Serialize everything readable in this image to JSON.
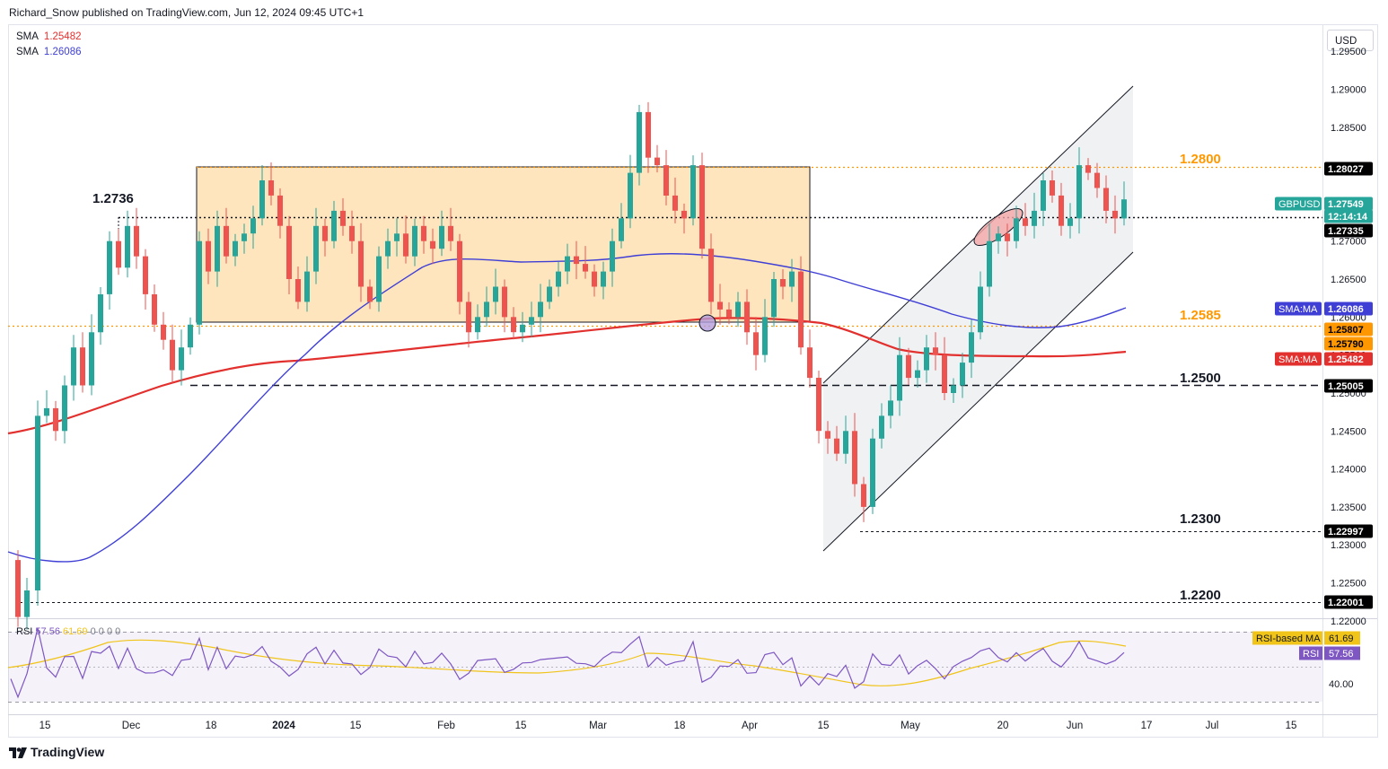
{
  "header": {
    "publisher": "Richard_Snow published on TradingView.com, Jun 12, 2024 09:45 UTC+1"
  },
  "legend": {
    "sma1_label": "SMA",
    "sma1_value": "1.25482",
    "sma2_label": "SMA",
    "sma2_value": "1.26086"
  },
  "currency_button": "USD",
  "footer": {
    "brand": "TradingView"
  },
  "colors": {
    "up": "#26a69a",
    "down": "#ef5350",
    "sma_red": "#e2302e",
    "sma_blue": "#3f3fd6",
    "zone_fill": "#ffe0b2",
    "orange": "#ff9800",
    "rsi": "#7e57c2",
    "rsi_ma": "#f0c419",
    "channel_fill": "#eef0f2"
  },
  "annotations": {
    "level_12736": "1.2736",
    "level_12800": "1.2800",
    "level_12585": "1.2585",
    "level_12500": "1.2500",
    "level_12300": "1.2300",
    "level_12200": "1.2200"
  },
  "rsi_legend": {
    "label": "RSI",
    "value": "57.56",
    "ma_value": "61.69",
    "zeros": "0 0 0 0"
  },
  "chart_data": {
    "type": "candlestick",
    "symbol": "GBPUSD",
    "price_axis": {
      "ticks": [
        "1.29500",
        "1.29000",
        "1.28500",
        "1.28000",
        "1.27500",
        "1.27000",
        "1.26500",
        "1.26000",
        "1.25500",
        "1.25000",
        "1.24500",
        "1.24000",
        "1.23500",
        "1.23000",
        "1.22500",
        "1.22000"
      ],
      "range": [
        1.2175,
        1.2975
      ]
    },
    "time_axis": {
      "ticks": [
        "15",
        "Dec",
        "18",
        "2024",
        "15",
        "Feb",
        "15",
        "Mar",
        "18",
        "Apr",
        "15",
        "May",
        "20",
        "Jun",
        "17",
        "Jul",
        "15"
      ],
      "bold_ticks": [
        "2024"
      ]
    },
    "price_labels": [
      {
        "text": "1.28027",
        "price": 1.28027,
        "bg": "#000000",
        "fg": "#ffffff"
      },
      {
        "text": "GBPUSD",
        "price": 1.2775,
        "bg": "#26a69a",
        "fg": "#ffffff"
      },
      {
        "text": "1.27549",
        "price": 1.27549,
        "bg": "#26a69a",
        "fg": "#ffffff"
      },
      {
        "text": "12:14:14",
        "price": 1.274,
        "bg": "#26a69a",
        "fg": "#ffffff"
      },
      {
        "text": "1.27335",
        "price": 1.27335,
        "bg": "#000000",
        "fg": "#ffffff"
      },
      {
        "text": "SMA:MA",
        "price": 1.26086,
        "bg": "#3f3fd6",
        "fg": "#ffffff"
      },
      {
        "text": "1.26086",
        "price": 1.26086,
        "bg": "#3f3fd6",
        "fg": "#ffffff"
      },
      {
        "text": "1.25807",
        "price": 1.25807,
        "bg": "#ff9800",
        "fg": "#000000"
      },
      {
        "text": "1.25790",
        "price": 1.2579,
        "bg": "#ff9800",
        "fg": "#000000"
      },
      {
        "text": "SMA:MA",
        "price": 1.25482,
        "bg": "#e2302e",
        "fg": "#ffffff"
      },
      {
        "text": "1.25482",
        "price": 1.25482,
        "bg": "#e2302e",
        "fg": "#ffffff"
      },
      {
        "text": "1.25005",
        "price": 1.25005,
        "bg": "#000000",
        "fg": "#ffffff"
      },
      {
        "text": "1.22997",
        "price": 1.22997,
        "bg": "#000000",
        "fg": "#ffffff"
      },
      {
        "text": "1.22001",
        "price": 1.22001,
        "bg": "#000000",
        "fg": "#ffffff"
      }
    ],
    "rsi_axis": {
      "ticks": [
        "40.00"
      ]
    },
    "rsi_labels": [
      {
        "text": "RSI-based MA",
        "value": "61.69",
        "bg": "#f0c419",
        "fg": "#131722"
      },
      {
        "text": "RSI",
        "value": "57.56",
        "bg": "#7e57c2",
        "fg": "#ffffff"
      }
    ],
    "sma_series": [
      {
        "name": "SMA",
        "value": "1.25482",
        "color": "#e2302e"
      },
      {
        "name": "SMA",
        "value": "1.26086",
        "color": "#3f3fd6"
      }
    ],
    "key_levels": [
      1.2736,
      1.28,
      1.2585,
      1.25,
      1.23,
      1.22
    ]
  }
}
